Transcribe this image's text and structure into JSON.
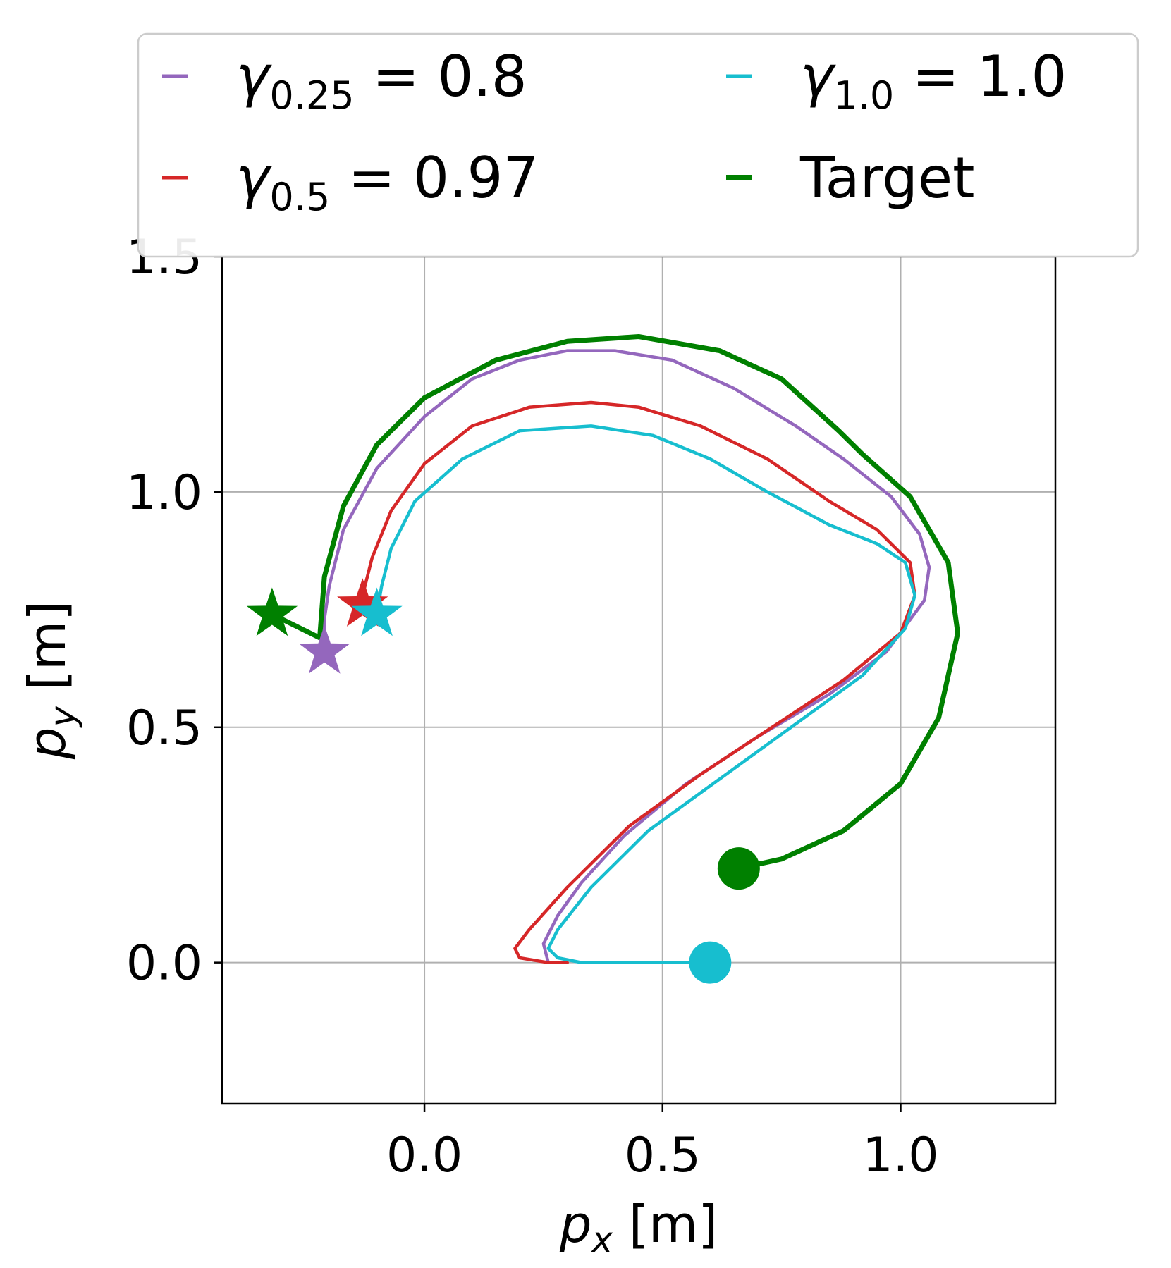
{
  "chart_data": {
    "type": "line",
    "xlabel": {
      "symbol": "p",
      "sub": "x",
      "unit": " [m]"
    },
    "ylabel": {
      "symbol": "p",
      "sub": "y",
      "unit": " [m]"
    },
    "xlim": [
      -0.425,
      1.325
    ],
    "ylim": [
      -0.3,
      1.5
    ],
    "xticks": [
      0.0,
      0.5,
      1.0
    ],
    "xtick_labels": [
      "0.0",
      "0.5",
      "1.0"
    ],
    "yticks": [
      0.0,
      0.5,
      1.0,
      1.5
    ],
    "ytick_labels": [
      "0.0",
      "0.5",
      "1.0",
      "1.5"
    ],
    "grid": true,
    "legend": {
      "placement": "top",
      "columns": 2
    },
    "series": [
      {
        "key": "g025",
        "legend": {
          "sym": "γ",
          "sub": "0.25",
          "rest": " = 0.8"
        },
        "color": "#9467bd",
        "points": [
          [
            0.26,
            0.0
          ],
          [
            0.25,
            0.04
          ],
          [
            0.28,
            0.1
          ],
          [
            0.33,
            0.17
          ],
          [
            0.42,
            0.27
          ],
          [
            0.55,
            0.38
          ],
          [
            0.7,
            0.48
          ],
          [
            0.85,
            0.57
          ],
          [
            0.97,
            0.66
          ],
          [
            1.05,
            0.77
          ],
          [
            1.06,
            0.84
          ],
          [
            1.04,
            0.91
          ],
          [
            0.98,
            0.99
          ],
          [
            0.88,
            1.07
          ],
          [
            0.78,
            1.14
          ],
          [
            0.65,
            1.22
          ],
          [
            0.52,
            1.28
          ],
          [
            0.4,
            1.3
          ],
          [
            0.3,
            1.3
          ],
          [
            0.2,
            1.28
          ],
          [
            0.1,
            1.24
          ],
          [
            0.0,
            1.16
          ],
          [
            -0.1,
            1.05
          ],
          [
            -0.17,
            0.92
          ],
          [
            -0.2,
            0.8
          ],
          [
            -0.21,
            0.73
          ],
          [
            -0.21,
            0.66
          ]
        ],
        "start": null,
        "end": [
          -0.21,
          0.66
        ]
      },
      {
        "key": "g05",
        "legend": {
          "sym": "γ",
          "sub": "0.5",
          "rest": " = 0.97"
        },
        "color": "#d62728",
        "points": [
          [
            0.3,
            0.0
          ],
          [
            0.26,
            0.0
          ],
          [
            0.2,
            0.01
          ],
          [
            0.19,
            0.03
          ],
          [
            0.22,
            0.07
          ],
          [
            0.3,
            0.16
          ],
          [
            0.43,
            0.29
          ],
          [
            0.58,
            0.4
          ],
          [
            0.73,
            0.5
          ],
          [
            0.88,
            0.6
          ],
          [
            1.0,
            0.7
          ],
          [
            1.03,
            0.78
          ],
          [
            1.02,
            0.85
          ],
          [
            0.95,
            0.92
          ],
          [
            0.85,
            0.98
          ],
          [
            0.72,
            1.07
          ],
          [
            0.58,
            1.14
          ],
          [
            0.45,
            1.18
          ],
          [
            0.35,
            1.19
          ],
          [
            0.22,
            1.18
          ],
          [
            0.1,
            1.14
          ],
          [
            0.0,
            1.06
          ],
          [
            -0.07,
            0.96
          ],
          [
            -0.11,
            0.86
          ],
          [
            -0.13,
            0.78
          ],
          [
            -0.13,
            0.76
          ]
        ],
        "start": null,
        "end": [
          -0.13,
          0.76
        ]
      },
      {
        "key": "g10",
        "legend": {
          "sym": "γ",
          "sub": "1.0",
          "rest": " = 1.0"
        },
        "color": "#17becf",
        "points": [
          [
            0.6,
            0.0
          ],
          [
            0.45,
            0.0
          ],
          [
            0.33,
            0.0
          ],
          [
            0.28,
            0.01
          ],
          [
            0.26,
            0.03
          ],
          [
            0.28,
            0.07
          ],
          [
            0.35,
            0.16
          ],
          [
            0.47,
            0.28
          ],
          [
            0.62,
            0.39
          ],
          [
            0.77,
            0.5
          ],
          [
            0.92,
            0.61
          ],
          [
            1.01,
            0.71
          ],
          [
            1.03,
            0.78
          ],
          [
            1.01,
            0.85
          ],
          [
            0.95,
            0.89
          ],
          [
            0.85,
            0.93
          ],
          [
            0.72,
            1.0
          ],
          [
            0.6,
            1.07
          ],
          [
            0.48,
            1.12
          ],
          [
            0.35,
            1.14
          ],
          [
            0.2,
            1.13
          ],
          [
            0.08,
            1.07
          ],
          [
            -0.02,
            0.98
          ],
          [
            -0.07,
            0.88
          ],
          [
            -0.09,
            0.8
          ],
          [
            -0.1,
            0.74
          ]
        ],
        "start": [
          0.6,
          0.0
        ],
        "end": [
          -0.1,
          0.74
        ]
      },
      {
        "key": "target",
        "legend": {
          "sym": "",
          "sub": "",
          "rest": "Target"
        },
        "color": "#008000",
        "points": [
          [
            0.66,
            0.2
          ],
          [
            0.75,
            0.22
          ],
          [
            0.88,
            0.28
          ],
          [
            1.0,
            0.38
          ],
          [
            1.08,
            0.52
          ],
          [
            1.12,
            0.7
          ],
          [
            1.1,
            0.85
          ],
          [
            1.02,
            0.99
          ],
          [
            0.92,
            1.08
          ],
          [
            0.87,
            1.13
          ],
          [
            0.75,
            1.24
          ],
          [
            0.62,
            1.3
          ],
          [
            0.45,
            1.33
          ],
          [
            0.3,
            1.32
          ],
          [
            0.15,
            1.28
          ],
          [
            0.0,
            1.2
          ],
          [
            -0.1,
            1.1
          ],
          [
            -0.17,
            0.97
          ],
          [
            -0.21,
            0.82
          ],
          [
            -0.22,
            0.69
          ],
          [
            -0.32,
            0.74
          ]
        ],
        "start": [
          0.66,
          0.2
        ],
        "end": [
          -0.32,
          0.74
        ]
      }
    ]
  }
}
